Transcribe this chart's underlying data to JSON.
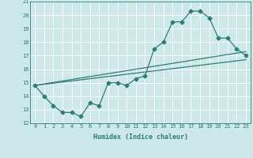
{
  "xlabel": "Humidex (Indice chaleur)",
  "bg_color": "#cce8e8",
  "grid_color": "#ffffff",
  "line_color": "#2e7d72",
  "xlim": [
    -0.5,
    23.5
  ],
  "ylim": [
    12,
    21
  ],
  "xticks": [
    0,
    1,
    2,
    3,
    4,
    5,
    6,
    7,
    8,
    9,
    10,
    11,
    12,
    13,
    14,
    15,
    16,
    17,
    18,
    19,
    20,
    21,
    22,
    23
  ],
  "yticks": [
    12,
    13,
    14,
    15,
    16,
    17,
    18,
    19,
    20,
    21
  ],
  "line1_x": [
    0,
    1,
    2,
    3,
    4,
    5,
    6,
    7,
    8,
    9,
    10,
    11,
    12,
    13,
    14,
    15,
    16,
    17,
    18,
    19,
    20,
    21,
    22,
    23
  ],
  "line1_y": [
    14.8,
    14.0,
    13.3,
    12.8,
    12.8,
    12.5,
    13.5,
    13.3,
    15.0,
    15.0,
    14.8,
    15.3,
    15.5,
    17.5,
    18.0,
    19.5,
    19.5,
    20.3,
    20.3,
    19.8,
    18.3,
    18.3,
    17.5,
    17.0
  ],
  "line2_x": [
    0,
    23
  ],
  "line2_y": [
    14.8,
    16.7
  ],
  "line3_x": [
    0,
    23
  ],
  "line3_y": [
    14.8,
    17.3
  ],
  "tick_fontsize": 5.0,
  "xlabel_fontsize": 6.0
}
